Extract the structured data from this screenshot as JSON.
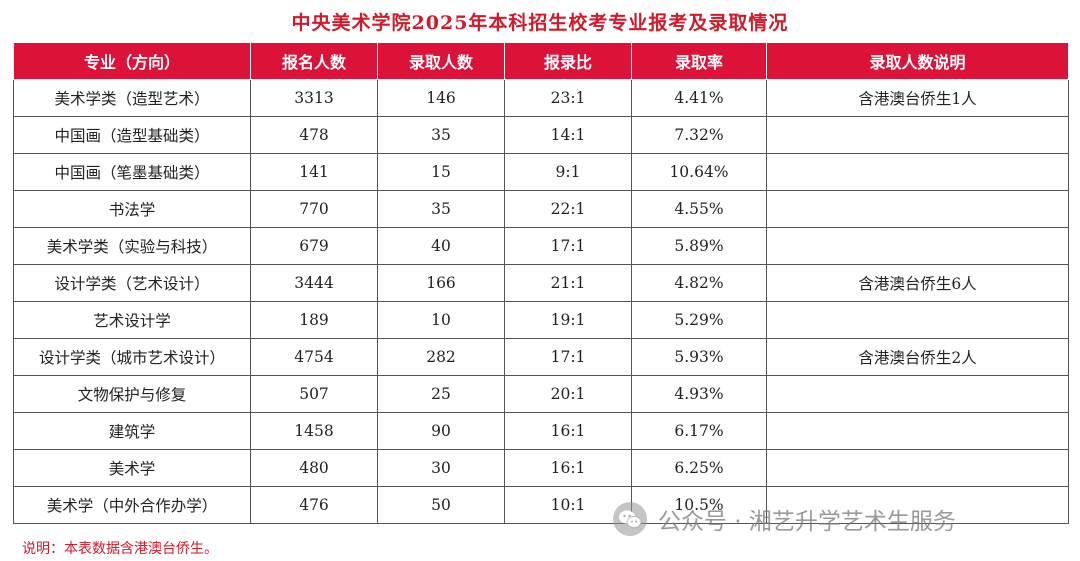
{
  "title": "中央美术学院2025年本科招生校考专业报考及录取情况",
  "columns": [
    "专业（方向）",
    "报名人数",
    "录取人数",
    "报录比",
    "录取率",
    "录取人数说明"
  ],
  "rows": [
    [
      "美术学类（造型艺术）",
      "3313",
      "146",
      "23:1",
      "4.41%",
      "含港澳台侨生1人"
    ],
    [
      "中国画（造型基础类）",
      "478",
      "35",
      "14:1",
      "7.32%",
      ""
    ],
    [
      "中国画（笔墨基础类）",
      "141",
      "15",
      "9:1",
      "10.64%",
      ""
    ],
    [
      "书法学",
      "770",
      "35",
      "22:1",
      "4.55%",
      ""
    ],
    [
      "美术学类（实验与科技）",
      "679",
      "40",
      "17:1",
      "5.89%",
      ""
    ],
    [
      "设计学类（艺术设计）",
      "3444",
      "166",
      "21:1",
      "4.82%",
      "含港澳台侨生6人"
    ],
    [
      "艺术设计学",
      "189",
      "10",
      "19:1",
      "5.29%",
      ""
    ],
    [
      "设计学类（城市艺术设计）",
      "4754",
      "282",
      "17:1",
      "5.93%",
      "含港澳台侨生2人"
    ],
    [
      "文物保护与修复",
      "507",
      "25",
      "20:1",
      "4.93%",
      ""
    ],
    [
      "建筑学",
      "1458",
      "90",
      "16:1",
      "6.17%",
      ""
    ],
    [
      "美术学",
      "480",
      "30",
      "16:1",
      "6.25%",
      ""
    ],
    [
      "美术学（中外合作办学）",
      "476",
      "50",
      "10:1",
      "10.5%",
      ""
    ]
  ],
  "note": "说明：本表数据含港澳台侨生。",
  "watermark": {
    "icon": "wechat-icon",
    "text": "公众号 · 湘艺升学艺术生服务"
  },
  "colors": {
    "title": "#d11a2a",
    "header_bg": "#dc1239",
    "header_text": "#ffffff",
    "note": "#d11a2a"
  }
}
